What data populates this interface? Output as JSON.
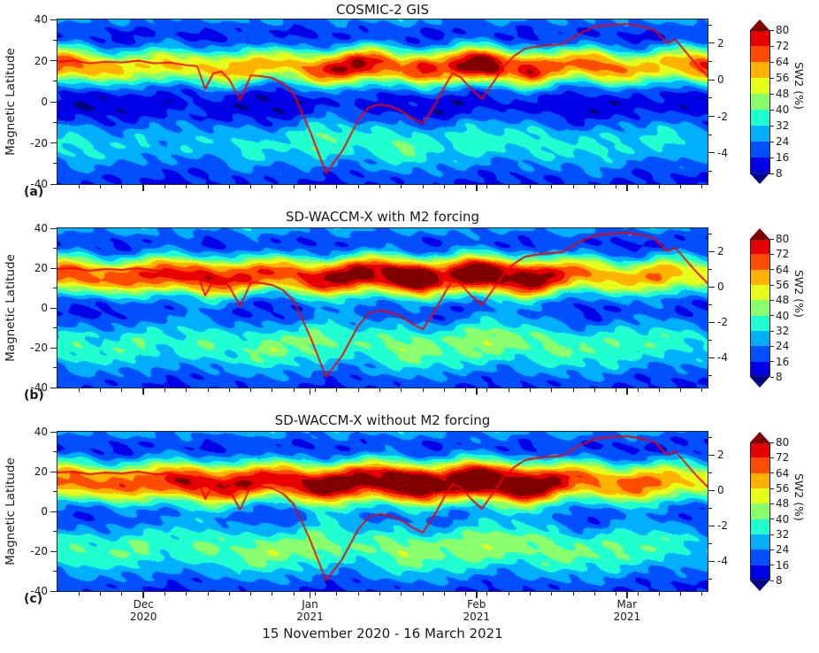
{
  "figure": {
    "xlabel": "15 November 2020 - 16 March 2021",
    "ylabel": "Magnetic Latitude",
    "colorbar_label": "SW2 (%)",
    "text_color": "#1a1a1a",
    "background": "#ffffff"
  },
  "panels": [
    {
      "tag": "(a)",
      "title": "COSMIC-2 GIS"
    },
    {
      "tag": "(b)",
      "title": "SD-WACCM-X with M2 forcing"
    },
    {
      "tag": "(c)",
      "title": "SD-WACCM-X without M2 forcing"
    }
  ],
  "axes": {
    "y_ticks": [
      40,
      20,
      0,
      -20,
      -40
    ],
    "y_minor_ticks": [
      30,
      10,
      -10,
      -30
    ],
    "y_range": [
      -40,
      40
    ],
    "right_ticks": [
      2,
      0,
      -2,
      -4
    ],
    "right_minor_ticks": [
      3,
      1,
      -1,
      -3,
      -5
    ],
    "right_range": [
      -5.7,
      3.3
    ],
    "x_range_days": [
      0,
      121
    ],
    "x_major_ticks_days": [
      16,
      47,
      78,
      106
    ],
    "x_month_labels": [
      [
        "Dec",
        "2020"
      ],
      [
        "Jan",
        "2021"
      ],
      [
        "Feb",
        "2021"
      ],
      [
        "Mar",
        "2021"
      ]
    ],
    "x_minor_tick_step_days": 4
  },
  "colorbar": {
    "levels": [
      8,
      16,
      24,
      32,
      40,
      48,
      56,
      64,
      72,
      80
    ],
    "colors": [
      "#000084",
      "#0000e8",
      "#0050ff",
      "#00b0ff",
      "#20ffd0",
      "#8aff6e",
      "#e6ff1a",
      "#ffb300",
      "#ff4d00",
      "#e60000",
      "#800000"
    ],
    "extend": "both"
  },
  "chart_data": [
    {
      "panel": "a",
      "type": "heatmap",
      "title": "COSMIC-2 GIS",
      "x_unit": "days since 15 Nov 2020",
      "y_unit": "magnetic latitude (deg)",
      "value_unit": "SW2 (%)",
      "x_days": [
        0,
        4,
        8,
        12,
        16,
        20,
        24,
        28,
        32,
        36,
        40,
        44,
        48,
        52,
        56,
        60,
        64,
        68,
        72,
        76,
        80,
        84,
        88,
        92,
        96,
        100,
        104,
        108,
        112,
        116,
        120
      ],
      "north_band": {
        "center_lat": 17,
        "width_lat": 6.5,
        "peak_sw2_pct": [
          58,
          54,
          46,
          44,
          42,
          46,
          40,
          44,
          48,
          50,
          44,
          46,
          56,
          66,
          70,
          62,
          50,
          64,
          58,
          74,
          80,
          56,
          68,
          54,
          50,
          58,
          52,
          44,
          46,
          50,
          60
        ]
      },
      "south_band": {
        "center_lat": -19,
        "width_lat": 10,
        "peak_sw2_pct": [
          20,
          24,
          18,
          16,
          20,
          17,
          22,
          18,
          20,
          24,
          18,
          22,
          30,
          28,
          24,
          27,
          30,
          25,
          20,
          27,
          24,
          22,
          25,
          24,
          20,
          24,
          22,
          18,
          24,
          20,
          17
        ]
      },
      "top_edge": {
        "center_lat": 42,
        "width_lat": 6,
        "peak_sw2_pct": [
          14,
          18,
          10,
          16,
          12,
          18,
          10,
          14,
          18,
          12,
          16,
          10,
          12,
          18,
          12,
          16,
          20,
          12,
          16,
          10,
          14,
          18,
          10,
          16,
          10,
          14,
          18,
          12,
          16,
          20,
          14
        ]
      },
      "background": {
        "base_sw2_pct": 13,
        "equatorial_trough": {
          "center_lat": -5,
          "depth": 8,
          "width_lat": 8
        },
        "mid_trough": {
          "center_lat": 33,
          "depth": 4,
          "width_lat": 5
        }
      }
    },
    {
      "panel": "b",
      "type": "heatmap",
      "title": "SD-WACCM-X with M2 forcing",
      "x_unit": "days since 15 Nov 2020",
      "y_unit": "magnetic latitude (deg)",
      "value_unit": "SW2 (%)",
      "x_days": [
        0,
        4,
        8,
        12,
        16,
        20,
        24,
        28,
        32,
        36,
        40,
        44,
        48,
        52,
        56,
        60,
        64,
        68,
        72,
        76,
        80,
        84,
        88,
        92,
        96,
        100,
        104,
        108,
        112,
        116,
        120
      ],
      "north_band": {
        "center_lat": 16,
        "width_lat": 7,
        "peak_sw2_pct": [
          56,
          58,
          52,
          56,
          60,
          64,
          60,
          66,
          62,
          60,
          56,
          58,
          64,
          72,
          74,
          70,
          82,
          84,
          64,
          82,
          84,
          70,
          80,
          66,
          54,
          50,
          46,
          46,
          54,
          44,
          40
        ]
      },
      "south_band": {
        "center_lat": -17,
        "width_lat": 11,
        "peak_sw2_pct": [
          24,
          27,
          22,
          25,
          28,
          24,
          27,
          30,
          25,
          28,
          32,
          28,
          33,
          30,
          27,
          30,
          35,
          32,
          28,
          33,
          36,
          32,
          30,
          33,
          28,
          27,
          30,
          25,
          28,
          24,
          22
        ]
      },
      "top_edge": {
        "center_lat": 42,
        "width_lat": 6,
        "peak_sw2_pct": [
          16,
          20,
          12,
          18,
          22,
          14,
          18,
          12,
          16,
          22,
          14,
          18,
          14,
          20,
          16,
          12,
          18,
          14,
          20,
          16,
          12,
          18,
          14,
          16,
          20,
          14,
          12,
          16,
          18,
          14,
          12
        ]
      },
      "background": {
        "base_sw2_pct": 13,
        "equatorial_trough": {
          "center_lat": -5,
          "depth": 8,
          "width_lat": 8
        },
        "mid_trough": {
          "center_lat": 33,
          "depth": 4,
          "width_lat": 5
        }
      }
    },
    {
      "panel": "c",
      "type": "heatmap",
      "title": "SD-WACCM-X without M2 forcing",
      "x_unit": "days since 15 Nov 2020",
      "y_unit": "magnetic latitude (deg)",
      "value_unit": "SW2 (%)",
      "x_days": [
        0,
        4,
        8,
        12,
        16,
        20,
        24,
        28,
        32,
        36,
        40,
        44,
        48,
        52,
        56,
        60,
        64,
        68,
        72,
        76,
        80,
        84,
        88,
        92,
        96,
        100,
        104,
        108,
        112,
        116,
        120
      ],
      "north_band": {
        "center_lat": 14.5,
        "width_lat": 7.5,
        "peak_sw2_pct": [
          54,
          56,
          52,
          58,
          56,
          60,
          66,
          64,
          68,
          66,
          62,
          66,
          72,
          76,
          74,
          72,
          86,
          84,
          72,
          86,
          84,
          78,
          82,
          70,
          58,
          54,
          50,
          58,
          52,
          44,
          40
        ]
      },
      "south_band": {
        "center_lat": -17,
        "width_lat": 11,
        "peak_sw2_pct": [
          25,
          28,
          24,
          27,
          30,
          27,
          30,
          33,
          28,
          32,
          33,
          30,
          35,
          32,
          28,
          32,
          36,
          33,
          30,
          35,
          36,
          33,
          32,
          35,
          30,
          28,
          32,
          27,
          28,
          24,
          20
        ]
      },
      "top_edge": {
        "center_lat": 42,
        "width_lat": 6,
        "peak_sw2_pct": [
          14,
          18,
          12,
          16,
          20,
          12,
          16,
          12,
          18,
          14,
          18,
          12,
          16,
          20,
          12,
          16,
          20,
          14,
          18,
          12,
          16,
          20,
          12,
          16,
          18,
          12,
          14,
          18,
          14,
          12,
          10
        ]
      },
      "background": {
        "base_sw2_pct": 13,
        "equatorial_trough": {
          "center_lat": -5,
          "depth": 8,
          "width_lat": 8
        },
        "mid_trough": {
          "center_lat": 33,
          "depth": 4,
          "width_lat": 5
        }
      }
    }
  ],
  "overlay_line": {
    "color": "#f20000",
    "axis": "right",
    "right_axis_range": [
      -5.7,
      3.3
    ],
    "days": [
      0,
      3,
      6,
      9,
      12,
      15,
      18,
      21,
      24,
      26,
      27.5,
      29,
      30.5,
      32,
      34,
      36,
      38,
      40,
      42,
      44,
      47,
      50,
      53,
      56,
      58,
      60,
      62,
      64,
      66,
      68,
      70,
      72,
      73.5,
      75,
      77,
      79,
      81,
      83,
      85,
      87,
      90,
      94,
      97,
      100,
      103,
      106,
      109,
      111,
      113.5,
      115,
      117,
      119,
      121
    ],
    "values": [
      1.0,
      1.05,
      0.9,
      1.0,
      0.95,
      1.05,
      0.9,
      0.95,
      0.8,
      0.75,
      -0.5,
      0.35,
      0.45,
      0.0,
      -1.1,
      0.25,
      0.2,
      0.1,
      -0.2,
      -0.8,
      -2.8,
      -5.1,
      -3.9,
      -2.2,
      -1.5,
      -1.35,
      -1.45,
      -1.7,
      -2.1,
      -2.4,
      -1.5,
      -0.4,
      0.35,
      0.15,
      -0.5,
      -1.05,
      -0.2,
      0.7,
      1.3,
      1.7,
      1.85,
      1.95,
      2.5,
      2.9,
      3.0,
      3.05,
      2.9,
      2.75,
      2.0,
      2.2,
      1.5,
      0.8,
      0.2
    ]
  }
}
